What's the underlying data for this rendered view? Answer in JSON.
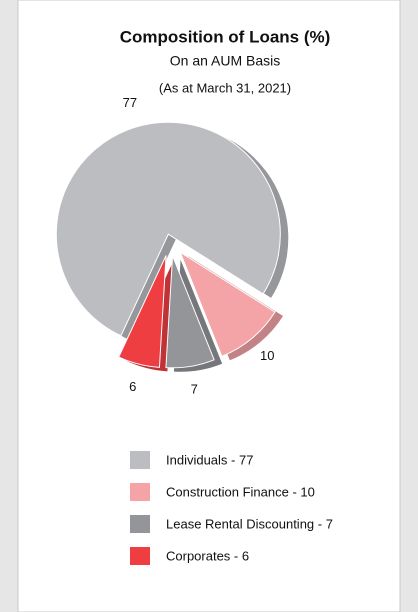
{
  "chart_data": {
    "type": "pie",
    "title": "Composition of Loans  (%)",
    "subtitle": "On an AUM Basis",
    "note": "(As at March 31, 2021)",
    "categories": [
      "Individuals",
      "Construction Finance",
      "Lease Rental Discounting",
      "Corporates"
    ],
    "values": [
      77,
      10,
      7,
      6
    ],
    "colors": [
      "#bcbdc0",
      "#f4a3a6",
      "#939598",
      "#ef3e42"
    ],
    "legend": [
      "Individuals - 77",
      "Construction Finance - 10",
      "Lease Rental Discounting - 7",
      "Corporates - 6"
    ]
  }
}
